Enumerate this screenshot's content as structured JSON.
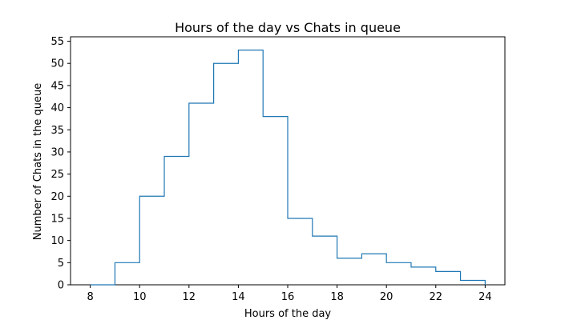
{
  "chart_data": {
    "type": "step",
    "title": "Hours of the day vs Chats in queue",
    "xlabel": "Hours of the day",
    "ylabel": "Number of Chats in the queue",
    "xlim": [
      7.2,
      24.8
    ],
    "ylim": [
      0,
      56
    ],
    "xticks": [
      8,
      10,
      12,
      14,
      16,
      18,
      20,
      22,
      24
    ],
    "yticks": [
      0,
      5,
      10,
      15,
      20,
      25,
      30,
      35,
      40,
      45,
      50,
      55
    ],
    "grid": false,
    "color": "#1f77b4",
    "bins": [
      {
        "start": 8,
        "end": 9,
        "value": 0
      },
      {
        "start": 9,
        "end": 10,
        "value": 5
      },
      {
        "start": 10,
        "end": 11,
        "value": 20
      },
      {
        "start": 11,
        "end": 12,
        "value": 29
      },
      {
        "start": 12,
        "end": 13,
        "value": 41
      },
      {
        "start": 13,
        "end": 14,
        "value": 50
      },
      {
        "start": 14,
        "end": 15,
        "value": 53
      },
      {
        "start": 15,
        "end": 16,
        "value": 38
      },
      {
        "start": 16,
        "end": 17,
        "value": 15
      },
      {
        "start": 17,
        "end": 18,
        "value": 11
      },
      {
        "start": 18,
        "end": 19,
        "value": 6
      },
      {
        "start": 19,
        "end": 20,
        "value": 7
      },
      {
        "start": 20,
        "end": 21,
        "value": 5
      },
      {
        "start": 21,
        "end": 22,
        "value": 4
      },
      {
        "start": 22,
        "end": 23,
        "value": 3
      },
      {
        "start": 23,
        "end": 24,
        "value": 1
      }
    ]
  }
}
